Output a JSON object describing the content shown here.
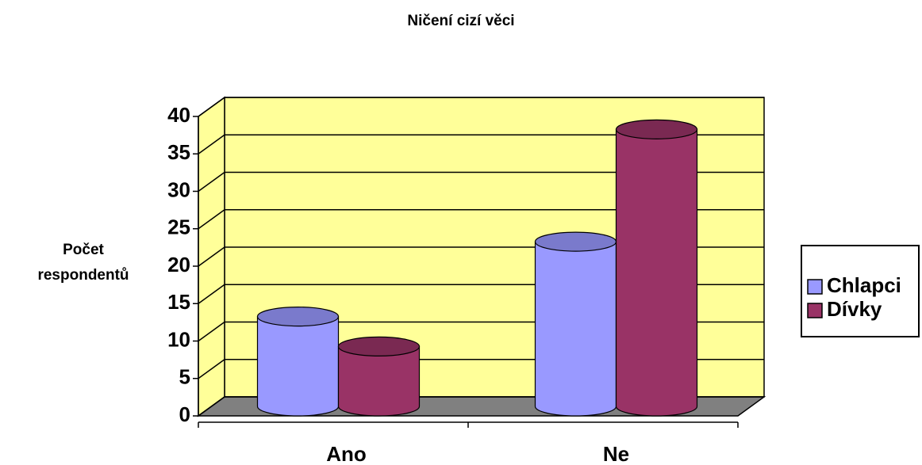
{
  "chart_data": {
    "type": "bar3d",
    "title": "Ničení cizí věci",
    "y_label": "Počet respondentů",
    "categories": [
      "Ano",
      "Ne"
    ],
    "series": [
      {
        "name": "Chlapci",
        "color": "#9999ff",
        "values": [
          12,
          22
        ]
      },
      {
        "name": "Dívky",
        "color": "#993366",
        "values": [
          8,
          37
        ]
      }
    ],
    "ylim": [
      0,
      40
    ],
    "yticks": [
      0,
      5,
      10,
      15,
      20,
      25,
      30,
      35,
      40
    ],
    "grid": true,
    "legend": "right",
    "wall_color": "#ffff99",
    "floor_color": "#808080"
  }
}
